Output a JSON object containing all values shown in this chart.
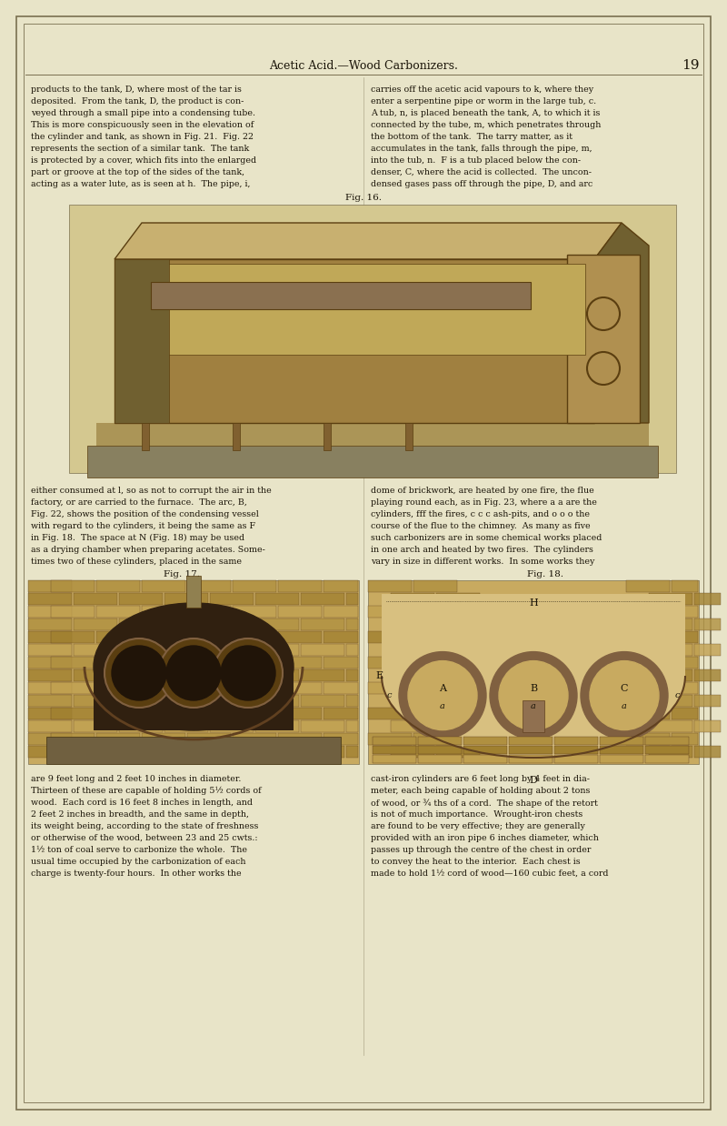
{
  "page_bg_color": "#e8e4c8",
  "content_bg_color": "#e8e4c8",
  "border_color": "#7a7050",
  "text_color": "#1a1408",
  "header_title_left": "Acetic Acid.",
  "header_title_right": "Wood Carbonizers.",
  "header_title_full": "Acetic Acid.—Wood Carbonizers.",
  "page_number": "19",
  "header_font_size": 9.5,
  "page_number_font_size": 12,
  "body_font_size": 6.8,
  "caption_font_size": 7.5,
  "col1_text": [
    "products to the tank, D, where most of the tar is",
    "deposited.  From the tank, D, the product is con-",
    "veyed through a small pipe into a condensing tube.",
    "This is more conspicuously seen in the elevation of",
    "the cylinder and tank, as shown in Fig. 21.  Fig. 22",
    "represents the section of a similar tank.  The tank",
    "is protected by a cover, which fits into the enlarged",
    "part or groove at the top of the sides of the tank,",
    "acting as a water lute, as is seen at h.  The pipe, i,"
  ],
  "col2_text": [
    "carries off the acetic acid vapours to k, where they",
    "enter a serpentine pipe or worm in the large tub, c.",
    "A tub, n, is placed beneath the tank, A, to which it is",
    "connected by the tube, m, which penetrates through",
    "the bottom of the tank.  The tarry matter, as it",
    "accumulates in the tank, falls through the pipe, m,",
    "into the tub, n.  F is a tub placed below the con-",
    "denser, C, where the acid is collected.  The uncon-",
    "densed gases pass off through the pipe, D, and arc"
  ],
  "fig16_caption": "Fig. 16.",
  "mid_col1_text": [
    "either consumed at l, so as not to corrupt the air in the",
    "factory, or are carried to the furnace.  The arc, B,",
    "Fig. 22, shows the position of the condensing vessel",
    "with regard to the cylinders, it being the same as F",
    "in Fig. 18.  The space at N (Fig. 18) may be used",
    "as a drying chamber when preparing acetates. Some-",
    "times two of these cylinders, placed in the same"
  ],
  "mid_col2_text": [
    "dome of brickwork, are heated by one fire, the flue",
    "playing round each, as in Fig. 23, where a a are the",
    "cylinders, fff the fires, c c c ash-pits, and o o o the",
    "course of the flue to the chimney.  As many as five",
    "such carbonizers are in some chemical works placed",
    "in one arch and heated by two fires.  The cylinders",
    "vary in size in different works.  In some works they"
  ],
  "fig17_caption": "Fig. 17.",
  "fig18_caption": "Fig. 18.",
  "bottom_col1_text": [
    "are 9 feet long and 2 feet 10 inches in diameter.",
    "Thirteen of these are capable of holding 5½ cords of",
    "wood.  Each cord is 16 feet 8 inches in length, and",
    "2 feet 2 inches in breadth, and the same in depth,",
    "its weight being, according to the state of freshness",
    "or otherwise of the wood, between 23 and 25 cwts.:",
    "1½ ton of coal serve to carbonize the whole.  The",
    "usual time occupied by the carbonization of each",
    "charge is twenty-four hours.  In other works the"
  ],
  "bottom_col2_text": [
    "cast-iron cylinders are 6 feet long by 4 feet in dia-",
    "meter, each being capable of holding about 2 tons",
    "of wood, or ¾ ths of a cord.  The shape of the retort",
    "is not of much importance.  Wrought-iron chests",
    "are found to be very effective; they are generally",
    "provided with an iron pipe 6 inches diameter, which",
    "passes up through the centre of the chest in order",
    "to convey the heat to the interior.  Each chest is",
    "made to hold 1½ cord of wood—160 cubic feet, a cord"
  ]
}
